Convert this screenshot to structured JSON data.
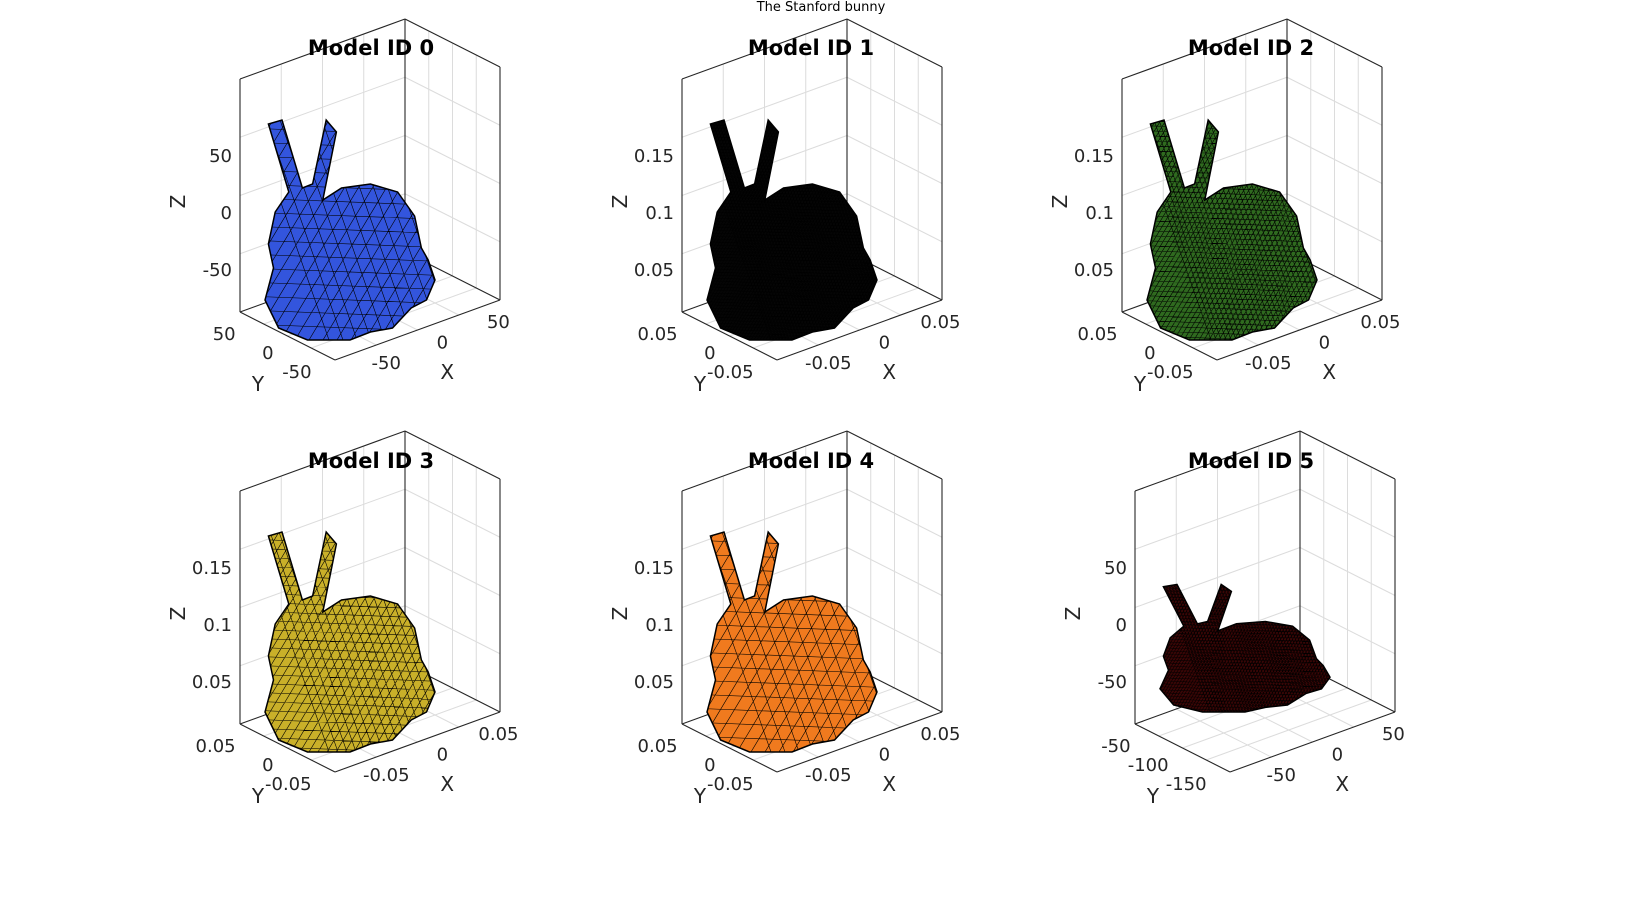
{
  "figure": {
    "title": "The Stanford bunny"
  },
  "chart_data": [
    {
      "type": "surface-mesh",
      "title": "Model ID 0",
      "color": "#3355dd",
      "mesh_density": "coarse",
      "xlabel": "X",
      "ylabel": "Y",
      "zlabel": "Z",
      "x_ticks": [
        "-50",
        "0",
        "50"
      ],
      "y_ticks": [
        "-50",
        "0",
        "50"
      ],
      "z_ticks": [
        "-50",
        "0",
        "50"
      ],
      "grid": true
    },
    {
      "type": "surface-mesh",
      "title": "Model ID 1",
      "color": "#050505",
      "mesh_density": "very dense",
      "xlabel": "X",
      "ylabel": "Y",
      "zlabel": "Z",
      "x_ticks": [
        "-0.05",
        "0",
        "0.05"
      ],
      "y_ticks": [
        "-0.05",
        "0",
        "0.05"
      ],
      "z_ticks": [
        "0.05",
        "0.1",
        "0.15"
      ],
      "grid": true
    },
    {
      "type": "surface-mesh",
      "title": "Model ID 2",
      "color": "#2f6a1f",
      "mesh_density": "dense",
      "xlabel": "X",
      "ylabel": "Y",
      "zlabel": "Z",
      "x_ticks": [
        "-0.05",
        "0",
        "0.05"
      ],
      "y_ticks": [
        "-0.05",
        "0",
        "0.05"
      ],
      "z_ticks": [
        "0.05",
        "0.1",
        "0.15"
      ],
      "grid": true
    },
    {
      "type": "surface-mesh",
      "title": "Model ID 3",
      "color": "#c9b029",
      "mesh_density": "medium",
      "xlabel": "X",
      "ylabel": "Y",
      "zlabel": "Z",
      "x_ticks": [
        "-0.05",
        "0",
        "0.05"
      ],
      "y_ticks": [
        "-0.05",
        "0",
        "0.05"
      ],
      "z_ticks": [
        "0.05",
        "0.1",
        "0.15"
      ],
      "grid": true
    },
    {
      "type": "surface-mesh",
      "title": "Model ID 4",
      "color": "#f07a1e",
      "mesh_density": "coarse",
      "xlabel": "X",
      "ylabel": "Y",
      "zlabel": "Z",
      "x_ticks": [
        "-0.05",
        "0",
        "0.05"
      ],
      "y_ticks": [
        "-0.05",
        "0",
        "0.05"
      ],
      "z_ticks": [
        "0.05",
        "0.1",
        "0.15"
      ],
      "grid": true
    },
    {
      "type": "surface-mesh",
      "title": "Model ID 5",
      "color": "#3a0606",
      "mesh_density": "very dense",
      "xlabel": "X",
      "ylabel": "Y",
      "zlabel": "Z",
      "x_ticks": [
        "-50",
        "0",
        "50"
      ],
      "y_ticks": [
        "-150",
        "-100",
        "-50"
      ],
      "z_ticks": [
        "-50",
        "0",
        "50"
      ],
      "grid": true
    }
  ]
}
